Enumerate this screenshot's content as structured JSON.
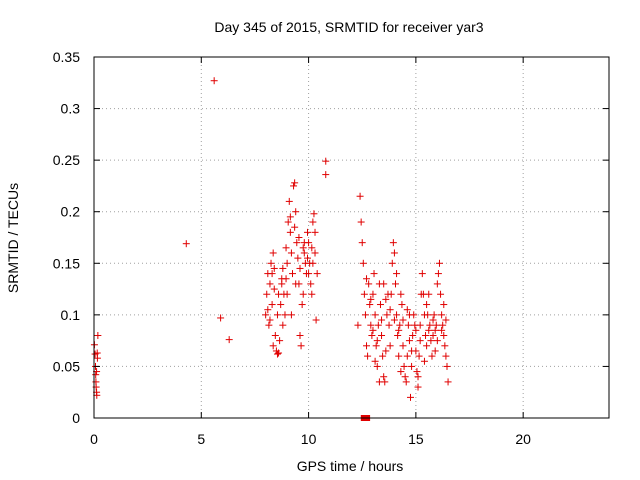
{
  "chart_data": {
    "type": "scatter",
    "title": "Day 345 of 2015, SRMTID for receiver yar3",
    "xlabel": "GPS time / hours",
    "ylabel": "SRMTID / TECUs",
    "xlim": [
      0,
      24
    ],
    "ylim": [
      0,
      0.35
    ],
    "xticks": [
      0,
      5,
      10,
      15,
      20
    ],
    "yticks": [
      0,
      0.05,
      0.1,
      0.15,
      0.2,
      0.25,
      0.3,
      0.35
    ],
    "xtick_labels": [
      "0",
      "5",
      "10",
      "15",
      "20"
    ],
    "ytick_labels": [
      "0",
      "0.05",
      "0.1",
      "0.15",
      "0.2",
      "0.25",
      "0.3",
      "0.35"
    ],
    "grid": true,
    "marker": "plus",
    "color": "#e00000",
    "series": [
      {
        "name": "SRMTID",
        "points": [
          [
            0.02,
            0.071
          ],
          [
            0.05,
            0.062
          ],
          [
            0.07,
            0.05
          ],
          [
            0.08,
            0.042
          ],
          [
            0.09,
            0.035
          ],
          [
            0.1,
            0.03
          ],
          [
            0.12,
            0.025
          ],
          [
            0.13,
            0.022
          ],
          [
            0.15,
            0.063
          ],
          [
            0.16,
            0.058
          ],
          [
            0.18,
            0.08
          ],
          [
            0.12,
            0.045
          ],
          [
            4.3,
            0.169
          ],
          [
            5.6,
            0.327
          ],
          [
            5.9,
            0.097
          ],
          [
            6.3,
            0.076
          ],
          [
            10.8,
            0.249
          ],
          [
            10.8,
            0.236
          ],
          [
            12.55,
            0.0
          ],
          [
            12.65,
            0.0
          ],
          [
            12.75,
            0.0
          ],
          [
            8.0,
            0.1
          ],
          [
            8.05,
            0.12
          ],
          [
            8.1,
            0.14
          ],
          [
            8.15,
            0.09
          ],
          [
            8.2,
            0.13
          ],
          [
            8.25,
            0.15
          ],
          [
            8.3,
            0.11
          ],
          [
            8.35,
            0.16
          ],
          [
            8.4,
            0.125
          ],
          [
            8.45,
            0.08
          ],
          [
            8.5,
            0.065
          ],
          [
            8.55,
            0.062
          ],
          [
            8.6,
            0.063
          ],
          [
            8.65,
            0.075
          ],
          [
            8.7,
            0.11
          ],
          [
            8.75,
            0.13
          ],
          [
            8.8,
            0.145
          ],
          [
            8.85,
            0.12
          ],
          [
            8.9,
            0.1
          ],
          [
            8.95,
            0.135
          ],
          [
            9.0,
            0.15
          ],
          [
            9.05,
            0.19
          ],
          [
            9.1,
            0.21
          ],
          [
            9.15,
            0.18
          ],
          [
            9.2,
            0.16
          ],
          [
            9.25,
            0.14
          ],
          [
            9.3,
            0.225
          ],
          [
            9.35,
            0.228
          ],
          [
            9.4,
            0.2
          ],
          [
            9.45,
            0.17
          ],
          [
            9.5,
            0.155
          ],
          [
            9.55,
            0.13
          ],
          [
            9.6,
            0.08
          ],
          [
            9.65,
            0.07
          ],
          [
            9.7,
            0.11
          ],
          [
            9.75,
            0.165
          ],
          [
            9.8,
            0.16
          ],
          [
            9.85,
            0.15
          ],
          [
            9.9,
            0.14
          ],
          [
            9.95,
            0.18
          ],
          [
            10.0,
            0.17
          ],
          [
            10.05,
            0.15
          ],
          [
            10.1,
            0.13
          ],
          [
            10.15,
            0.12
          ],
          [
            10.2,
            0.19
          ],
          [
            10.25,
            0.198
          ],
          [
            10.3,
            0.16
          ],
          [
            10.35,
            0.095
          ],
          [
            10.4,
            0.14
          ],
          [
            8.1,
            0.105
          ],
          [
            8.2,
            0.095
          ],
          [
            8.3,
            0.14
          ],
          [
            8.4,
            0.145
          ],
          [
            8.6,
            0.12
          ],
          [
            8.8,
            0.09
          ],
          [
            9.0,
            0.12
          ],
          [
            9.2,
            0.1
          ],
          [
            9.4,
            0.13
          ],
          [
            9.6,
            0.145
          ],
          [
            9.8,
            0.17
          ],
          [
            10.0,
            0.14
          ],
          [
            10.2,
            0.15
          ],
          [
            8.35,
            0.07
          ],
          [
            8.55,
            0.1
          ],
          [
            8.75,
            0.135
          ],
          [
            8.95,
            0.165
          ],
          [
            9.15,
            0.195
          ],
          [
            9.35,
            0.185
          ],
          [
            9.55,
            0.175
          ],
          [
            9.75,
            0.12
          ],
          [
            9.95,
            0.155
          ],
          [
            10.15,
            0.165
          ],
          [
            10.3,
            0.18
          ],
          [
            12.3,
            0.09
          ],
          [
            12.4,
            0.215
          ],
          [
            12.45,
            0.19
          ],
          [
            12.5,
            0.17
          ],
          [
            12.55,
            0.15
          ],
          [
            12.6,
            0.12
          ],
          [
            12.65,
            0.1
          ],
          [
            12.7,
            0.07
          ],
          [
            12.75,
            0.06
          ],
          [
            12.8,
            0.13
          ],
          [
            12.85,
            0.11
          ],
          [
            12.9,
            0.09
          ],
          [
            12.95,
            0.08
          ],
          [
            13.0,
            0.12
          ],
          [
            13.05,
            0.14
          ],
          [
            13.1,
            0.1
          ],
          [
            13.15,
            0.07
          ],
          [
            13.2,
            0.05
          ],
          [
            13.25,
            0.09
          ],
          [
            13.3,
            0.13
          ],
          [
            13.35,
            0.11
          ],
          [
            13.4,
            0.08
          ],
          [
            13.45,
            0.06
          ],
          [
            13.5,
            0.04
          ],
          [
            13.55,
            0.035
          ],
          [
            13.6,
            0.065
          ],
          [
            13.65,
            0.1
          ],
          [
            13.7,
            0.12
          ],
          [
            13.75,
            0.09
          ],
          [
            13.8,
            0.07
          ],
          [
            13.85,
            0.12
          ],
          [
            13.9,
            0.15
          ],
          [
            13.95,
            0.17
          ],
          [
            14.0,
            0.16
          ],
          [
            14.05,
            0.13
          ],
          [
            14.1,
            0.1
          ],
          [
            14.15,
            0.08
          ],
          [
            14.2,
            0.06
          ],
          [
            14.25,
            0.09
          ],
          [
            14.3,
            0.12
          ],
          [
            14.35,
            0.11
          ],
          [
            14.4,
            0.07
          ],
          [
            14.45,
            0.05
          ],
          [
            14.5,
            0.04
          ],
          [
            14.55,
            0.035
          ],
          [
            14.6,
            0.06
          ],
          [
            14.65,
            0.09
          ],
          [
            14.7,
            0.075
          ],
          [
            14.75,
            0.02
          ],
          [
            14.8,
            0.05
          ],
          [
            14.85,
            0.08
          ],
          [
            14.9,
            0.1
          ],
          [
            14.95,
            0.09
          ],
          [
            15.0,
            0.065
          ],
          [
            15.05,
            0.045
          ],
          [
            15.1,
            0.04
          ],
          [
            15.15,
            0.06
          ],
          [
            15.2,
            0.09
          ],
          [
            15.25,
            0.12
          ],
          [
            15.3,
            0.14
          ],
          [
            15.35,
            0.12
          ],
          [
            15.4,
            0.1
          ],
          [
            15.45,
            0.08
          ],
          [
            15.5,
            0.07
          ],
          [
            15.55,
            0.1
          ],
          [
            15.6,
            0.12
          ],
          [
            15.65,
            0.09
          ],
          [
            15.7,
            0.075
          ],
          [
            15.75,
            0.06
          ],
          [
            15.8,
            0.08
          ],
          [
            15.85,
            0.1
          ],
          [
            15.9,
            0.085
          ],
          [
            15.95,
            0.09
          ],
          [
            16.0,
            0.13
          ],
          [
            16.05,
            0.14
          ],
          [
            16.1,
            0.15
          ],
          [
            16.15,
            0.12
          ],
          [
            16.2,
            0.1
          ],
          [
            16.25,
            0.09
          ],
          [
            16.3,
            0.08
          ],
          [
            16.35,
            0.07
          ],
          [
            16.4,
            0.06
          ],
          [
            16.45,
            0.05
          ],
          [
            16.5,
            0.035
          ],
          [
            12.9,
            0.115
          ],
          [
            13.0,
            0.085
          ],
          [
            13.2,
            0.075
          ],
          [
            13.4,
            0.095
          ],
          [
            13.6,
            0.115
          ],
          [
            13.8,
            0.105
          ],
          [
            14.0,
            0.095
          ],
          [
            14.2,
            0.085
          ],
          [
            14.4,
            0.095
          ],
          [
            14.6,
            0.105
          ],
          [
            14.8,
            0.065
          ],
          [
            15.0,
            0.085
          ],
          [
            15.2,
            0.075
          ],
          [
            15.4,
            0.055
          ],
          [
            15.6,
            0.085
          ],
          [
            15.8,
            0.095
          ],
          [
            16.0,
            0.075
          ],
          [
            16.2,
            0.085
          ],
          [
            16.4,
            0.095
          ],
          [
            13.1,
            0.055
          ],
          [
            13.5,
            0.13
          ],
          [
            14.1,
            0.14
          ],
          [
            14.3,
            0.045
          ],
          [
            14.7,
            0.1
          ],
          [
            15.1,
            0.03
          ],
          [
            15.5,
            0.11
          ],
          [
            15.9,
            0.065
          ],
          [
            16.3,
            0.11
          ],
          [
            12.7,
            0.135
          ],
          [
            13.3,
            0.035
          ]
        ]
      }
    ]
  }
}
